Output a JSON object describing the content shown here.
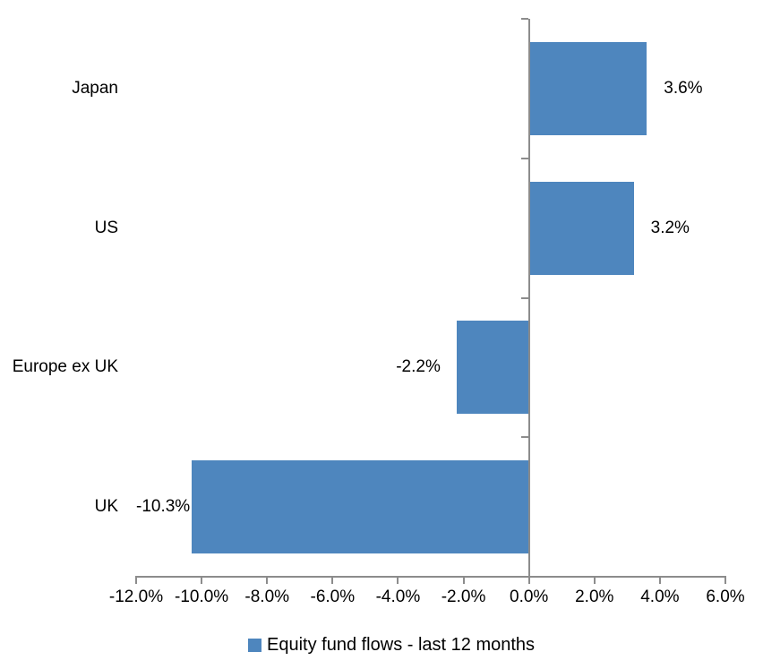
{
  "chart_data": {
    "type": "bar",
    "orientation": "horizontal",
    "title": "",
    "categories": [
      "Japan",
      "US",
      "Europe ex UK",
      "UK"
    ],
    "series": [
      {
        "name": "Equity fund flows - last 12 months",
        "values": [
          3.6,
          3.2,
          -2.2,
          -10.3
        ],
        "data_labels": [
          "3.6%",
          "3.2%",
          "-2.2%",
          "-10.3%"
        ]
      }
    ],
    "xlabel": "",
    "ylabel": "",
    "xlim": [
      -12,
      6
    ],
    "x_ticks": [
      -12,
      -10,
      -8,
      -6,
      -4,
      -2,
      0,
      2,
      4,
      6
    ],
    "x_tick_labels": [
      "-12.0%",
      "-10.0%",
      "-8.0%",
      "-6.0%",
      "-4.0%",
      "-2.0%",
      "0.0%",
      "2.0%",
      "4.0%",
      "6.0%"
    ],
    "grid": false,
    "legend_position": "bottom",
    "colors": {
      "bar": "#4E86BE",
      "axis": "#8C8C8C",
      "text": "#000000"
    }
  }
}
